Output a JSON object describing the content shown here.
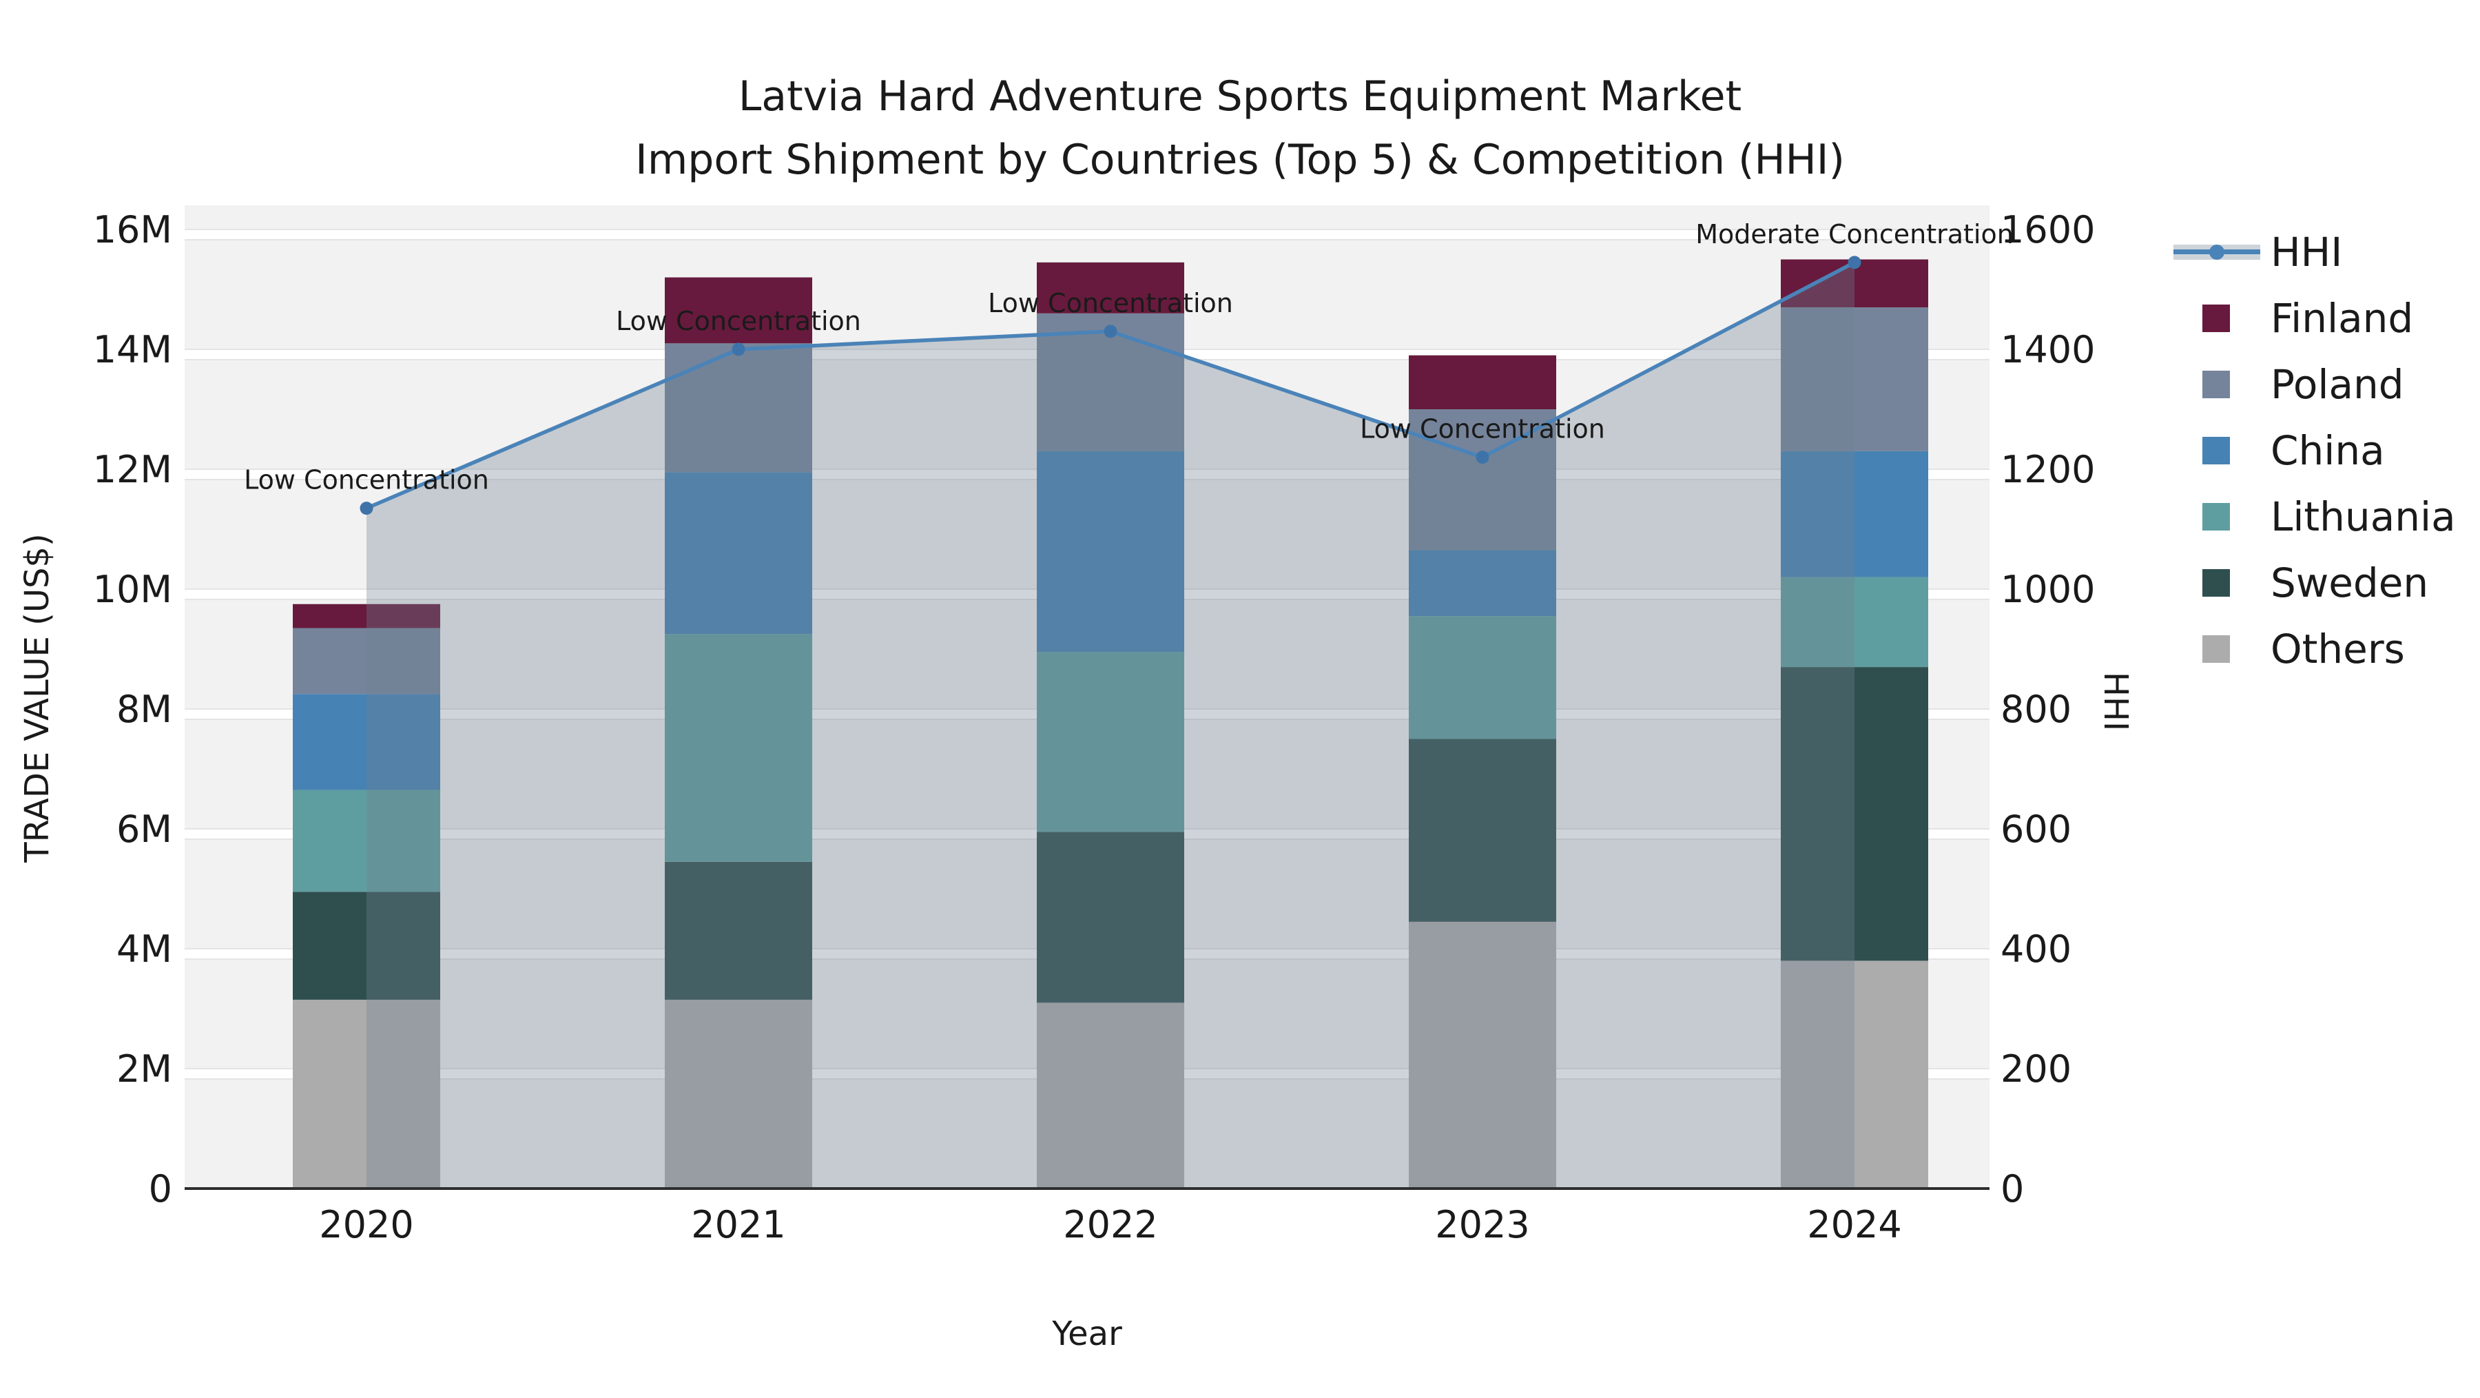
{
  "title": {
    "line1": "Latvia Hard Adventure Sports Equipment Market",
    "line2": "Import Shipment by Countries (Top 5) & Competition (HHI)"
  },
  "axes": {
    "x_label": "Year",
    "y_left_label": "TRADE VALUE (US$)",
    "y_right_label": "HHI",
    "x_ticks": [
      "2020",
      "2021",
      "2022",
      "2023",
      "2024"
    ],
    "y_left_ticks": [
      "0",
      "2M",
      "4M",
      "6M",
      "8M",
      "10M",
      "12M",
      "14M",
      "16M"
    ],
    "y_right_ticks": [
      "0",
      "200",
      "400",
      "600",
      "800",
      "1000",
      "1200",
      "1400",
      "1600"
    ]
  },
  "legend": {
    "items": [
      {
        "label": "HHI",
        "type": "line"
      },
      {
        "label": "Finland",
        "type": "swatch",
        "color": "#671A3D"
      },
      {
        "label": "Poland",
        "type": "swatch",
        "color": "#75849B"
      },
      {
        "label": "China",
        "type": "swatch",
        "color": "#4682B4"
      },
      {
        "label": "Lithuania",
        "type": "swatch",
        "color": "#5F9EA0"
      },
      {
        "label": "Sweden",
        "type": "swatch",
        "color": "#2F4F4F"
      },
      {
        "label": "Others",
        "type": "swatch",
        "color": "#ACACAC"
      }
    ]
  },
  "chart_data": {
    "type": "bar",
    "stacked": true,
    "title": "Latvia Hard Adventure Sports Equipment Market — Import Shipment by Countries (Top 5) & Competition (HHI)",
    "xlabel": "Year",
    "ylabel": "TRADE VALUE (US$)",
    "ylabel_right": "HHI",
    "categories": [
      "2020",
      "2021",
      "2022",
      "2023",
      "2024"
    ],
    "unit": "million US$",
    "ylim_left_musd": [
      0,
      16
    ],
    "ylim_right": [
      0,
      1600
    ],
    "grid": true,
    "legend_position": "right",
    "series": [
      {
        "name": "Others",
        "color": "#ACACAC",
        "values": [
          3.15,
          3.15,
          3.1,
          4.45,
          3.8
        ]
      },
      {
        "name": "Sweden",
        "color": "#2F4F4F",
        "values": [
          1.8,
          2.3,
          2.85,
          3.05,
          4.9
        ]
      },
      {
        "name": "Lithuania",
        "color": "#5F9EA0",
        "values": [
          1.7,
          3.8,
          3.0,
          2.05,
          1.5
        ]
      },
      {
        "name": "China",
        "color": "#4682B4",
        "values": [
          1.6,
          2.7,
          3.35,
          1.1,
          2.1
        ]
      },
      {
        "name": "Poland",
        "color": "#75849B",
        "values": [
          1.1,
          2.15,
          2.3,
          2.35,
          2.4
        ]
      },
      {
        "name": "Finland",
        "color": "#671A3D",
        "values": [
          0.4,
          1.1,
          0.85,
          0.9,
          0.8
        ]
      }
    ],
    "line_series": {
      "name": "HHI",
      "axis": "right",
      "color": "#4A83B8",
      "marker_color": "#3E73A9",
      "area_fill": "rgba(112,128,144,0.34)",
      "values": [
        1135,
        1400,
        1430,
        1220,
        1545
      ]
    },
    "annotations": [
      {
        "category": "2020",
        "text": "Low Concentration"
      },
      {
        "category": "2021",
        "text": "Low Concentration"
      },
      {
        "category": "2022",
        "text": "Low Concentration"
      },
      {
        "category": "2023",
        "text": "Low Concentration"
      },
      {
        "category": "2024",
        "text": "Moderate Concentration"
      }
    ],
    "colors": {
      "plot_background": "#f2f2f2",
      "gridline_band": "#ffffff",
      "gridline_edge": "#e4e4e4",
      "axis_line": "#2e2e2e",
      "text": "#1a1a1a"
    }
  }
}
